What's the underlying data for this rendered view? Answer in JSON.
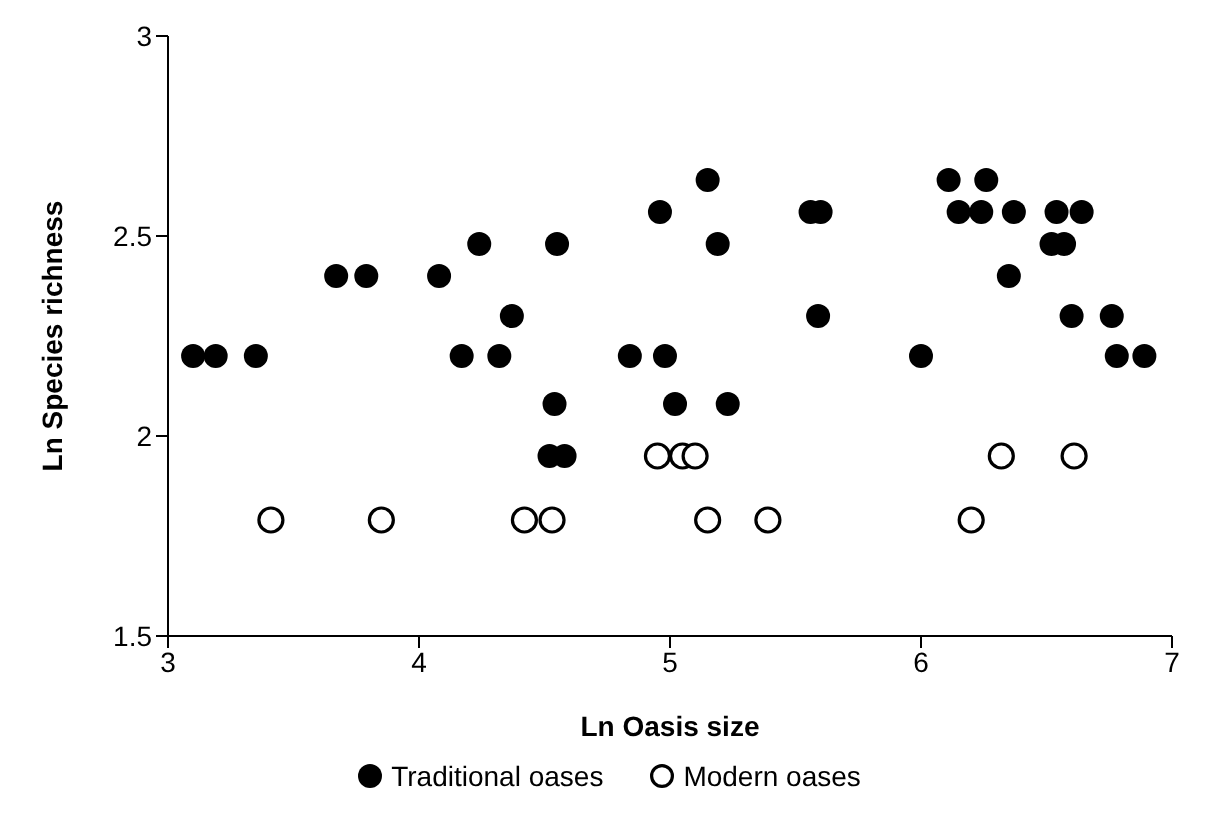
{
  "chart_data": {
    "type": "scatter",
    "xlabel": "Ln Oasis size",
    "ylabel": "Ln Species richness",
    "xlim": [
      3,
      7
    ],
    "xticks": [
      3,
      4,
      5,
      6,
      7
    ],
    "ylim": [
      1.5,
      3
    ],
    "yticks": [
      1.5,
      2,
      2.5,
      3
    ],
    "grid": false,
    "legend": "bottom",
    "marker": "circle",
    "series": [
      {
        "name": "Traditional oases",
        "color": "#000000",
        "x": [
          3.1,
          3.19,
          3.35,
          3.67,
          3.79,
          4.08,
          4.17,
          4.24,
          4.32,
          4.37,
          4.54,
          4.52,
          4.58,
          4.55,
          4.84,
          4.96,
          4.98,
          5.02,
          5.15,
          5.19,
          5.23,
          5.56,
          5.6,
          5.59,
          6.0,
          6.11,
          6.26,
          6.15,
          6.24,
          6.37,
          6.54,
          6.64,
          6.52,
          6.57,
          6.35,
          6.6,
          6.76,
          6.78,
          6.89
        ],
        "values": [
          2.2,
          2.2,
          2.2,
          2.4,
          2.4,
          2.4,
          2.2,
          2.48,
          2.2,
          2.3,
          2.08,
          1.95,
          1.95,
          2.48,
          2.2,
          2.56,
          2.2,
          2.08,
          2.64,
          2.48,
          2.08,
          2.56,
          2.56,
          2.3,
          2.2,
          2.64,
          2.64,
          2.56,
          2.56,
          2.56,
          2.56,
          2.56,
          2.48,
          2.48,
          2.4,
          2.3,
          2.3,
          2.2,
          2.2
        ]
      },
      {
        "name": "Modern oases",
        "color": "#000000",
        "x": [
          3.41,
          3.85,
          4.42,
          4.53,
          4.95,
          5.05,
          5.1,
          5.15,
          5.39,
          6.2,
          6.32,
          6.61
        ],
        "values": [
          1.79,
          1.79,
          1.79,
          1.79,
          1.95,
          1.95,
          1.95,
          1.79,
          1.79,
          1.79,
          1.95,
          1.95
        ]
      }
    ]
  }
}
